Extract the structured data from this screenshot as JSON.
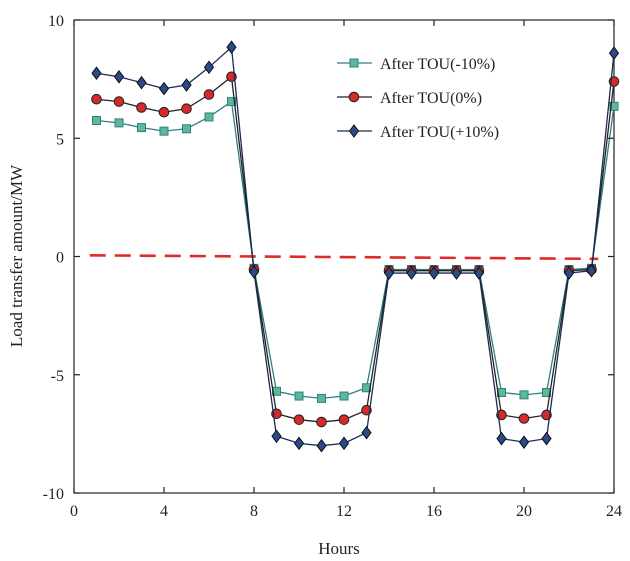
{
  "chart_data": {
    "type": "line",
    "title": "",
    "xlabel": "Hours",
    "ylabel": "Load transfer amount/MW",
    "xlim": [
      0,
      24
    ],
    "ylim": [
      -10,
      10
    ],
    "xticks": [
      0,
      4,
      8,
      12,
      16,
      20,
      24
    ],
    "yticks": [
      10,
      5,
      0,
      -5,
      -10
    ],
    "x": [
      1,
      2,
      3,
      4,
      5,
      6,
      7,
      8,
      9,
      10,
      11,
      12,
      13,
      14,
      15,
      16,
      17,
      18,
      19,
      20,
      21,
      22,
      23,
      24
    ],
    "series": [
      {
        "name": "After TOU(-10%)",
        "marker": "square",
        "color": "#2f8080",
        "marker_fill": "#5db89a",
        "values": [
          5.75,
          5.65,
          5.45,
          5.3,
          5.4,
          5.9,
          6.55,
          -0.5,
          -5.7,
          -5.9,
          -6.0,
          -5.9,
          -5.55,
          -0.55,
          -0.55,
          -0.55,
          -0.55,
          -0.55,
          -5.75,
          -5.85,
          -5.75,
          -0.55,
          -0.5,
          6.35
        ]
      },
      {
        "name": "After TOU(0%)",
        "marker": "circle",
        "color": "#222222",
        "marker_fill": "#d42a2a",
        "values": [
          6.65,
          6.55,
          6.3,
          6.1,
          6.25,
          6.85,
          7.6,
          -0.55,
          -6.65,
          -6.9,
          -7.0,
          -6.9,
          -6.5,
          -0.6,
          -0.6,
          -0.6,
          -0.6,
          -0.6,
          -6.7,
          -6.85,
          -6.7,
          -0.6,
          -0.55,
          7.4
        ]
      },
      {
        "name": "After TOU(+10%)",
        "marker": "diamond",
        "color": "#1b2a52",
        "marker_fill": "#2b4a8a",
        "values": [
          7.75,
          7.6,
          7.35,
          7.1,
          7.25,
          8.0,
          8.85,
          -0.65,
          -7.6,
          -7.9,
          -8.0,
          -7.9,
          -7.45,
          -0.7,
          -0.7,
          -0.7,
          -0.7,
          -0.7,
          -7.7,
          -7.85,
          -7.7,
          -0.7,
          -0.6,
          8.6
        ]
      }
    ],
    "reference_line": {
      "style": "dashed",
      "color": "#e02a2a",
      "points": [
        [
          0.7,
          0.05
        ],
        [
          23.3,
          -0.1
        ]
      ]
    },
    "legend": {
      "position": "top-right"
    }
  }
}
